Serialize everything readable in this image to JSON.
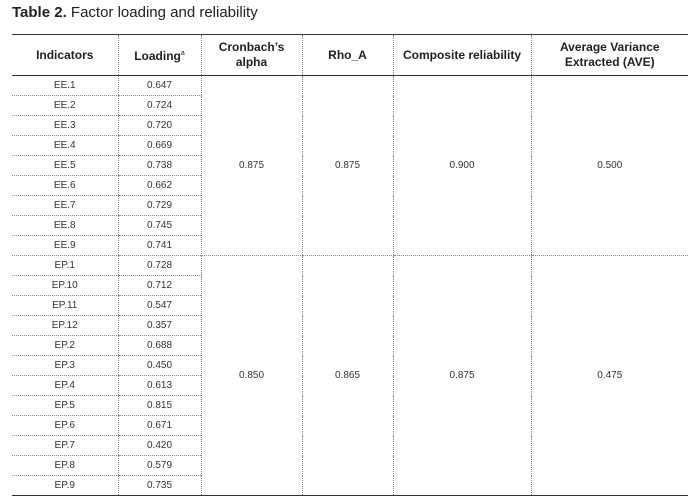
{
  "caption": {
    "label": "Table 2.",
    "text": "Factor loading and reliability"
  },
  "headers": {
    "indicators": "Indicators",
    "loading": "Loading",
    "loading_sup": "a",
    "cronbach_line1": "Cronbach’s",
    "cronbach_line2": "alpha",
    "rho": "Rho_A",
    "composite": "Composite reliability",
    "ave_line1": "Average Variance",
    "ave_line2": "Extracted (AVE)"
  },
  "groups": [
    {
      "cronbach": "0.875",
      "rho": "0.875",
      "composite": "0.900",
      "ave": "0.500",
      "rows": [
        {
          "indicator": "EE.1",
          "loading": "0.647"
        },
        {
          "indicator": "EE.2",
          "loading": "0.724"
        },
        {
          "indicator": "EE.3",
          "loading": "0.720"
        },
        {
          "indicator": "EE.4",
          "loading": "0.669"
        },
        {
          "indicator": "EE.5",
          "loading": "0.738"
        },
        {
          "indicator": "EE.6",
          "loading": "0.662"
        },
        {
          "indicator": "EE.7",
          "loading": "0.729"
        },
        {
          "indicator": "EE.8",
          "loading": "0.745"
        },
        {
          "indicator": "EE.9",
          "loading": "0.741"
        }
      ]
    },
    {
      "cronbach": "0.850",
      "rho": "0.865",
      "composite": "0.875",
      "ave": "0.475",
      "rows": [
        {
          "indicator": "EP.1",
          "loading": "0.728"
        },
        {
          "indicator": "EP.10",
          "loading": "0.712"
        },
        {
          "indicator": "EP.11",
          "loading": "0.547"
        },
        {
          "indicator": "EP.12",
          "loading": "0.357"
        },
        {
          "indicator": "EP.2",
          "loading": "0.688"
        },
        {
          "indicator": "EP.3",
          "loading": "0.450"
        },
        {
          "indicator": "EP.4",
          "loading": "0.613"
        },
        {
          "indicator": "EP.5",
          "loading": "0.815"
        },
        {
          "indicator": "EP.6",
          "loading": "0.671"
        },
        {
          "indicator": "EP.7",
          "loading": "0.420"
        },
        {
          "indicator": "EP.8",
          "loading": "0.579"
        },
        {
          "indicator": "EP.9",
          "loading": "0.735"
        }
      ]
    }
  ]
}
